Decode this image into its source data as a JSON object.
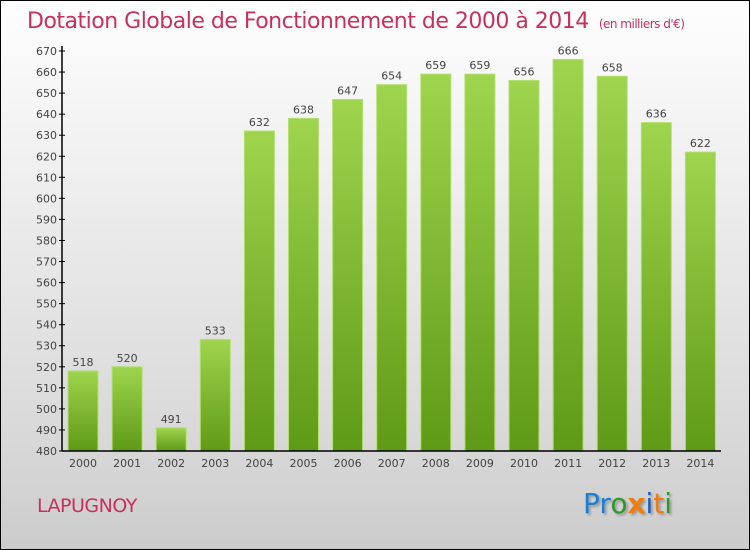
{
  "title": "Dotation Globale de Fonctionnement de 2000 à 2014",
  "subtitle": "(en milliers d'€)",
  "city": "LAPUGNOY",
  "logo": {
    "text": "Proxiti",
    "letters": [
      "P",
      "r",
      "o",
      "x",
      "i",
      "t",
      "i"
    ],
    "colors": [
      "#1a7fd4",
      "#1a7fd4",
      "#2a9a2a",
      "#f07c10",
      "#1a5fc0",
      "#f07c10",
      "#2a9a2a"
    ]
  },
  "colors": {
    "bar_top": "#9fd44e",
    "bar_bottom": "#5f9a16",
    "title": "#c8305e"
  },
  "chart_data": {
    "type": "bar",
    "title": "Dotation Globale de Fonctionnement de 2000 à 2014",
    "categories": [
      "2000",
      "2001",
      "2002",
      "2003",
      "2004",
      "2005",
      "2006",
      "2007",
      "2008",
      "2009",
      "2010",
      "2011",
      "2012",
      "2013",
      "2014"
    ],
    "values": [
      518,
      520,
      491,
      533,
      632,
      638,
      647,
      654,
      659,
      659,
      656,
      666,
      658,
      636,
      622
    ],
    "ylim": [
      480,
      670
    ],
    "yticks": [
      480,
      490,
      500,
      510,
      520,
      530,
      540,
      550,
      560,
      570,
      580,
      590,
      600,
      610,
      620,
      630,
      640,
      650,
      660,
      670
    ],
    "xlabel": "",
    "ylabel": "",
    "grid": false
  }
}
